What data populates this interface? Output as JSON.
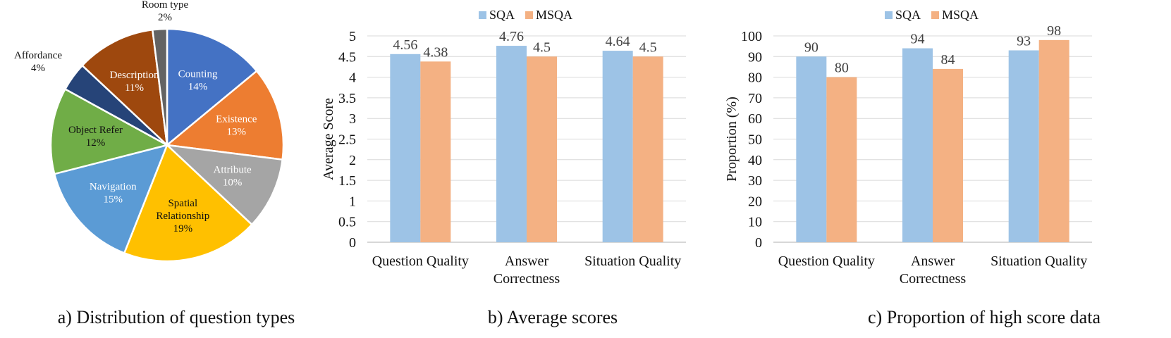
{
  "chart_data": [
    {
      "type": "pie",
      "caption": "a) Distribution of question types",
      "slices": [
        {
          "label": "Counting",
          "percent": 14,
          "pct_label": "14%",
          "color": "#4472C4",
          "text_color": "#ffffff"
        },
        {
          "label": "Existence",
          "percent": 13,
          "pct_label": "13%",
          "color": "#ED7D31",
          "text_color": "#ffffff"
        },
        {
          "label": "Attribute",
          "percent": 10,
          "pct_label": "10%",
          "color": "#A5A5A5",
          "text_color": "#ffffff"
        },
        {
          "label": "Spatial Relationship",
          "lines": [
            "Spatial",
            "Relationship"
          ],
          "percent": 19,
          "pct_label": "19%",
          "color": "#FFC000",
          "text_color": "#111111"
        },
        {
          "label": "Navigation",
          "percent": 15,
          "pct_label": "15%",
          "color": "#5B9BD5",
          "text_color": "#ffffff"
        },
        {
          "label": "Object Refer",
          "percent": 12,
          "pct_label": "12%",
          "color": "#70AD47",
          "text_color": "#111111"
        },
        {
          "label": "Affordance",
          "percent": 4,
          "pct_label": "4%",
          "color": "#264478",
          "text_color": "#111111",
          "outside": true
        },
        {
          "label": "Description",
          "percent": 11,
          "pct_label": "11%",
          "color": "#9E480E",
          "text_color": "#ffffff"
        },
        {
          "label": "Room type",
          "percent": 2,
          "pct_label": "2%",
          "color": "#636363",
          "text_color": "#111111",
          "outside": true
        }
      ]
    },
    {
      "type": "bar",
      "caption": "b) Average scores",
      "categories": [
        [
          "Question Quality"
        ],
        [
          "Answer",
          "Correctness"
        ],
        [
          "Situation Quality"
        ]
      ],
      "series": [
        {
          "name": "SQA",
          "color": "#9DC3E6",
          "values": [
            4.56,
            4.76,
            4.64
          ],
          "labels": [
            "4.56",
            "4.76",
            "4.64"
          ]
        },
        {
          "name": "MSQA",
          "color": "#F4B183",
          "values": [
            4.38,
            4.5,
            4.5
          ],
          "labels": [
            "4.38",
            "4.5",
            "4.5"
          ]
        }
      ],
      "ylabel": "Average Score",
      "ylim": [
        0,
        5
      ],
      "yticks": [
        "0",
        "0.5",
        "1",
        "1.5",
        "2",
        "2.5",
        "3",
        "3.5",
        "4",
        "4.5",
        "5"
      ],
      "grid": true,
      "legend": "top"
    },
    {
      "type": "bar",
      "caption": "c) Proportion of high score data",
      "categories": [
        [
          "Question Quality"
        ],
        [
          "Answer",
          "Correctness"
        ],
        [
          "Situation Quality"
        ]
      ],
      "series": [
        {
          "name": "SQA",
          "color": "#9DC3E6",
          "values": [
            90,
            94,
            93
          ],
          "labels": [
            "90",
            "94",
            "93"
          ]
        },
        {
          "name": "MSQA",
          "color": "#F4B183",
          "values": [
            80,
            84,
            98
          ],
          "labels": [
            "80",
            "84",
            "98"
          ]
        }
      ],
      "ylabel": "Proportion (%)",
      "ylim": [
        0,
        100
      ],
      "yticks": [
        "0",
        "10",
        "20",
        "30",
        "40",
        "50",
        "60",
        "70",
        "80",
        "90",
        "100"
      ],
      "grid": true,
      "legend": "top"
    }
  ]
}
